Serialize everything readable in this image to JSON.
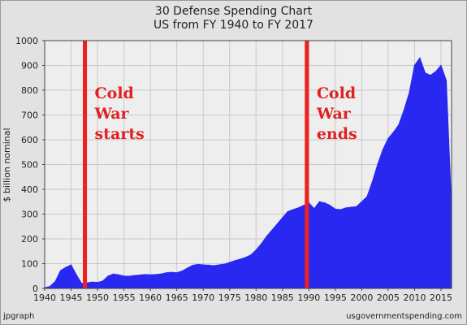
{
  "footer": {
    "left": "jpgraph",
    "right": "usgovernmentspending.com"
  },
  "colors": {
    "area": "#2828f0",
    "event_line": "#ee2020",
    "plot_bg": "#eeeeee",
    "grid": "#c8c8c8"
  },
  "chart_data": {
    "type": "area",
    "title": "30 Defense Spending Chart",
    "subtitle": "US from FY 1940 to FY 2017",
    "xlabel": "",
    "ylabel": "$ billion nominal",
    "xlim": [
      1940,
      2017
    ],
    "ylim": [
      0,
      1000
    ],
    "x_ticks": [
      1940,
      1945,
      1950,
      1955,
      1960,
      1965,
      1970,
      1975,
      1980,
      1985,
      1990,
      1995,
      2000,
      2005,
      2010,
      2015
    ],
    "y_ticks": [
      0,
      100,
      200,
      300,
      400,
      500,
      600,
      700,
      800,
      900,
      1000
    ],
    "grid": true,
    "x": [
      1940,
      1941,
      1942,
      1943,
      1944,
      1945,
      1946,
      1947,
      1948,
      1949,
      1950,
      1951,
      1952,
      1953,
      1954,
      1955,
      1956,
      1957,
      1958,
      1959,
      1960,
      1961,
      1962,
      1963,
      1964,
      1965,
      1966,
      1967,
      1968,
      1969,
      1970,
      1971,
      1972,
      1973,
      1974,
      1975,
      1976,
      1977,
      1978,
      1979,
      1980,
      1981,
      1982,
      1983,
      1984,
      1985,
      1986,
      1987,
      1988,
      1989,
      1990,
      1991,
      1992,
      1993,
      1994,
      1995,
      1996,
      1997,
      1998,
      1999,
      2000,
      2001,
      2002,
      2003,
      2004,
      2005,
      2006,
      2007,
      2008,
      2009,
      2010,
      2011,
      2012,
      2013,
      2014,
      2015,
      2016,
      2017
    ],
    "values": [
      3,
      8,
      28,
      72,
      85,
      95,
      55,
      20,
      22,
      26,
      24,
      30,
      50,
      58,
      55,
      50,
      49,
      52,
      54,
      56,
      55,
      56,
      58,
      63,
      65,
      63,
      70,
      82,
      93,
      97,
      95,
      94,
      92,
      95,
      98,
      105,
      112,
      118,
      125,
      135,
      155,
      180,
      210,
      235,
      260,
      285,
      310,
      318,
      325,
      335,
      345,
      322,
      350,
      345,
      335,
      320,
      318,
      325,
      328,
      330,
      350,
      370,
      430,
      500,
      560,
      605,
      630,
      660,
      720,
      790,
      900,
      930,
      870,
      860,
      875,
      900,
      840,
      320
    ],
    "annotations": [
      {
        "x": 1947,
        "lines": [
          "Cold",
          "War",
          "starts"
        ]
      },
      {
        "x": 1989,
        "lines": [
          "Cold",
          "War",
          "ends"
        ]
      }
    ]
  }
}
